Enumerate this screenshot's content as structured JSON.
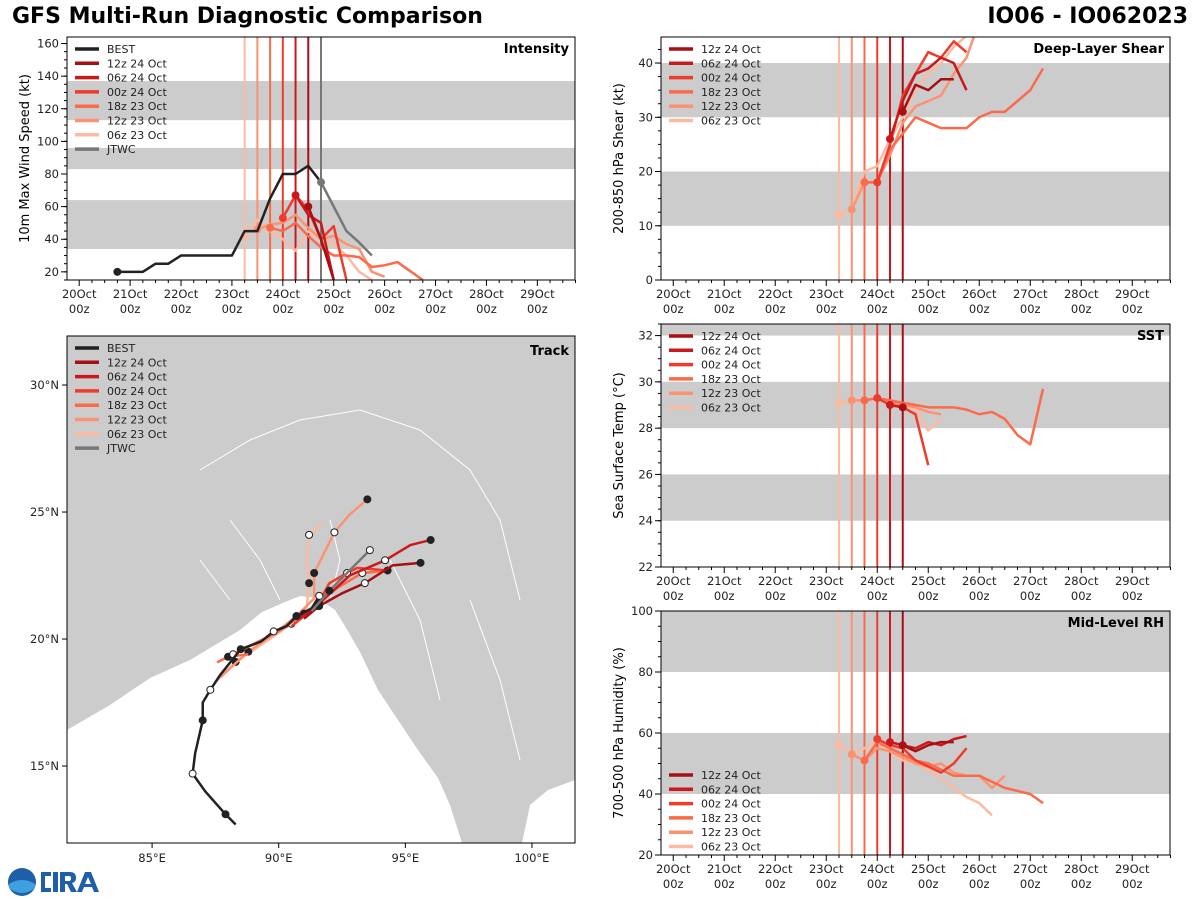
{
  "header": {
    "title": "GFS Multi-Run Diagnostic Comparison",
    "storm": "IO06 - IO062023"
  },
  "logo": {
    "text": "CIRA",
    "agency": "NOAA"
  },
  "colors": {
    "BEST": "#222222",
    "JTWC": "#777777",
    "12z 24 Oct": "#a50f15",
    "06z 24 Oct": "#cb181d",
    "00z 24 Oct": "#ef3b2c",
    "18z 23 Oct": "#fb6a4a",
    "12z 23 Oct": "#fc9272",
    "06z 23 Oct": "#fcbba1",
    "band": "#cccccc",
    "land": "#cccccc"
  },
  "time_axis": {
    "ticks": [
      0,
      1,
      2,
      3,
      4,
      5,
      6,
      7,
      8,
      9
    ],
    "labels": [
      [
        "20Oct",
        "00z"
      ],
      [
        "21Oct",
        "00z"
      ],
      [
        "22Oct",
        "00z"
      ],
      [
        "23Oct",
        "00z"
      ],
      [
        "24Oct",
        "00z"
      ],
      [
        "25Oct",
        "00z"
      ],
      [
        "26Oct",
        "00z"
      ],
      [
        "27Oct",
        "00z"
      ],
      [
        "28Oct",
        "00z"
      ],
      [
        "29Oct",
        "00z"
      ]
    ],
    "range_days_since_20Oct00z": [
      -0.24,
      9.74
    ]
  },
  "init_times": {
    "12z 24 Oct": 4.5,
    "06z 24 Oct": 4.25,
    "00z 24 Oct": 4.0,
    "18z 23 Oct": 3.75,
    "12z 23 Oct": 3.5,
    "06z 23 Oct": 3.25
  },
  "chart_data": [
    {
      "type": "line",
      "title": "Intensity",
      "ylabel": "10m Max Wind Speed (kt)",
      "ylim": [
        15,
        164
      ],
      "yticks": [
        20,
        40,
        60,
        80,
        100,
        120,
        140,
        160
      ],
      "bands": [
        [
          34,
          64
        ],
        [
          83,
          96
        ],
        [
          113,
          137
        ]
      ],
      "legend": [
        "BEST",
        "12z 24 Oct",
        "06z 24 Oct",
        "00z 24 Oct",
        "18z 23 Oct",
        "12z 23 Oct",
        "06z 23 Oct",
        "JTWC"
      ],
      "vlines": [
        "06z 23 Oct",
        "12z 23 Oct",
        "18z 23 Oct",
        "00z 24 Oct",
        "06z 24 Oct",
        "12z 24 Oct",
        "JTWC"
      ],
      "jtwc_vline": 4.75,
      "series": [
        {
          "name": "06z 23 Oct",
          "x": [
            3.25,
            3.5,
            3.75,
            4,
            4.25,
            4.5,
            4.75,
            5,
            5.25,
            5.5,
            5.75
          ],
          "y": [
            42,
            52,
            45,
            40,
            33,
            45,
            40,
            37,
            30,
            20,
            15
          ]
        },
        {
          "name": "12z 23 Oct",
          "x": [
            3.5,
            3.75,
            4,
            4.25,
            4.5,
            4.75,
            5,
            5.25,
            5.5,
            5.75,
            6
          ],
          "y": [
            46,
            49,
            50,
            55,
            47,
            40,
            42,
            37,
            34,
            20,
            17
          ]
        },
        {
          "name": "18z 23 Oct",
          "x": [
            3.75,
            4,
            4.25,
            4.5,
            4.75,
            5,
            5.25,
            5.5,
            5.75,
            6,
            6.25,
            6.75
          ],
          "y": [
            47,
            45,
            50,
            42,
            35,
            30,
            30,
            29,
            23,
            24,
            26,
            15
          ]
        },
        {
          "name": "00z 24 Oct",
          "x": [
            4,
            4.25,
            4.5,
            4.75,
            5,
            5.25
          ],
          "y": [
            53,
            67,
            58,
            40,
            48,
            15
          ]
        },
        {
          "name": "06z 24 Oct",
          "x": [
            4.25,
            4.5,
            4.75,
            5
          ],
          "y": [
            67,
            55,
            50,
            15
          ]
        },
        {
          "name": "12z 24 Oct",
          "x": [
            4.5,
            4.75,
            5
          ],
          "y": [
            60,
            40,
            15
          ]
        },
        {
          "name": "BEST",
          "x": [
            0.75,
            1,
            1.25,
            1.5,
            1.75,
            2,
            2.25,
            2.5,
            2.75,
            3,
            3.25,
            3.5,
            3.75,
            4,
            4.25,
            4.5,
            4.75
          ],
          "y": [
            20,
            20,
            20,
            25,
            25,
            30,
            30,
            30,
            30,
            30,
            45,
            45,
            65,
            80,
            80,
            85,
            75
          ]
        },
        {
          "name": "JTWC",
          "x": [
            4.75,
            5,
            5.25,
            5.5,
            5.75
          ],
          "y": [
            75,
            60,
            45,
            38,
            30
          ]
        }
      ]
    },
    {
      "type": "line",
      "title": "Deep-Layer Shear",
      "ylabel": "200-850 hPa Shear (kt)",
      "ylim": [
        0,
        44.8
      ],
      "yticks": [
        0,
        10,
        20,
        30,
        40
      ],
      "bands": [
        [
          10,
          20
        ],
        [
          30,
          40
        ]
      ],
      "legend": [
        "12z 24 Oct",
        "06z 24 Oct",
        "00z 24 Oct",
        "18z 23 Oct",
        "12z 23 Oct",
        "06z 23 Oct"
      ],
      "vlines": [
        "06z 23 Oct",
        "12z 23 Oct",
        "18z 23 Oct",
        "00z 24 Oct",
        "06z 24 Oct",
        "12z 24 Oct"
      ],
      "series": [
        {
          "name": "06z 23 Oct",
          "x": [
            3.25,
            3.5,
            3.75,
            4,
            4.25,
            4.5,
            4.75,
            5,
            5.25,
            5.5,
            5.75
          ],
          "y": [
            12,
            13,
            20,
            21,
            26,
            30,
            35,
            38,
            40,
            43,
            45
          ]
        },
        {
          "name": "12z 23 Oct",
          "x": [
            3.5,
            3.75,
            4,
            4.25,
            4.5,
            4.75,
            5,
            5.25,
            5.5,
            5.75,
            5.9
          ],
          "y": [
            13,
            18,
            18,
            23,
            29,
            32,
            33,
            34,
            38,
            41,
            45
          ]
        },
        {
          "name": "18z 23 Oct",
          "x": [
            3.75,
            4,
            4.25,
            4.5,
            4.75,
            5,
            5.25,
            5.5,
            5.75,
            6,
            6.25,
            6.5,
            6.75,
            7,
            7.25
          ],
          "y": [
            18,
            18,
            24,
            27,
            30,
            29,
            28,
            28,
            28,
            30,
            31,
            31,
            33,
            35,
            39
          ]
        },
        {
          "name": "00z 24 Oct",
          "x": [
            4,
            4.25,
            4.5,
            4.75,
            5,
            5.25,
            5.5,
            5.75
          ],
          "y": [
            18,
            25,
            34,
            38,
            42,
            41,
            44,
            42
          ]
        },
        {
          "name": "06z 24 Oct",
          "x": [
            4.25,
            4.5,
            4.75,
            5,
            5.25,
            5.5,
            5.75
          ],
          "y": [
            26,
            33,
            38,
            39,
            41,
            40,
            35
          ]
        },
        {
          "name": "12z 24 Oct",
          "x": [
            4.5,
            4.75,
            5,
            5.25,
            5.5
          ],
          "y": [
            31,
            36,
            35,
            37,
            37
          ]
        }
      ]
    },
    {
      "type": "line",
      "title": "SST",
      "ylabel": "Sea Surface Temp (°C)",
      "ylim": [
        22,
        32.5
      ],
      "yticks": [
        22,
        24,
        26,
        28,
        30,
        32
      ],
      "bands": [
        [
          24,
          26
        ],
        [
          28,
          30
        ],
        [
          32,
          33
        ]
      ],
      "legend": [
        "12z 24 Oct",
        "06z 24 Oct",
        "00z 24 Oct",
        "18z 23 Oct",
        "12z 23 Oct",
        "06z 23 Oct"
      ],
      "vlines": [
        "06z 23 Oct",
        "12z 23 Oct",
        "18z 23 Oct",
        "00z 24 Oct",
        "06z 24 Oct",
        "12z 24 Oct"
      ],
      "series": [
        {
          "name": "06z 23 Oct",
          "x": [
            3.25,
            3.5,
            3.75,
            4,
            4.25,
            4.5,
            4.75,
            5,
            5.25
          ],
          "y": [
            29.1,
            29.2,
            29.2,
            29.3,
            29.1,
            29.0,
            28.8,
            27.9,
            28.4
          ]
        },
        {
          "name": "12z 23 Oct",
          "x": [
            3.5,
            3.75,
            4,
            4.25,
            4.5,
            4.75,
            5,
            5.25
          ],
          "y": [
            29.2,
            29.2,
            29.3,
            29.1,
            29.0,
            28.9,
            28.7,
            28.6
          ]
        },
        {
          "name": "18z 23 Oct",
          "x": [
            3.75,
            4,
            4.25,
            4.5,
            4.75,
            5,
            5.25,
            5.5,
            5.75,
            6,
            6.25,
            6.5,
            6.75,
            7,
            7.25
          ],
          "y": [
            29.2,
            29.3,
            29.2,
            29.1,
            29.0,
            28.9,
            28.9,
            28.9,
            28.8,
            28.6,
            28.7,
            28.4,
            27.7,
            27.3,
            29.7
          ]
        },
        {
          "name": "00z 24 Oct",
          "x": [
            4,
            4.25,
            4.5,
            4.75,
            5
          ],
          "y": [
            29.3,
            29.0,
            28.9,
            28.6,
            26.4
          ]
        },
        {
          "name": "06z 24 Oct",
          "x": [
            4.25,
            4.5
          ],
          "y": [
            29.0,
            28.9
          ]
        },
        {
          "name": "12z 24 Oct",
          "x": [
            4.5
          ],
          "y": [
            28.9
          ]
        }
      ]
    },
    {
      "type": "line",
      "title": "Mid-Level RH",
      "ylabel": "700-500 hPa Humidity (%)",
      "ylim": [
        20,
        100
      ],
      "yticks": [
        20,
        40,
        60,
        80,
        100
      ],
      "bands": [
        [
          40,
          60
        ],
        [
          80,
          100
        ]
      ],
      "legend": [
        "12z 24 Oct",
        "06z 24 Oct",
        "00z 24 Oct",
        "18z 23 Oct",
        "12z 23 Oct",
        "06z 23 Oct"
      ],
      "vlines": [
        "06z 23 Oct",
        "12z 23 Oct",
        "18z 23 Oct",
        "00z 24 Oct",
        "06z 24 Oct",
        "12z 24 Oct"
      ],
      "series": [
        {
          "name": "06z 23 Oct",
          "x": [
            3.25,
            3.5,
            3.75,
            4,
            4.25,
            4.5,
            4.75,
            5,
            5.25,
            5.5,
            5.75,
            6,
            6.25
          ],
          "y": [
            56,
            53,
            55,
            57,
            54,
            51,
            50,
            48,
            45,
            42,
            39,
            37,
            33
          ]
        },
        {
          "name": "12z 23 Oct",
          "x": [
            3.5,
            3.75,
            4,
            4.25,
            4.5,
            4.75,
            5,
            5.25,
            5.5,
            5.75,
            6,
            6.25,
            6.5
          ],
          "y": [
            53,
            51,
            55,
            54,
            52,
            50,
            49,
            50,
            47,
            46,
            46,
            42,
            46
          ]
        },
        {
          "name": "18z 23 Oct",
          "x": [
            3.75,
            4,
            4.25,
            4.5,
            4.75,
            5,
            5.25,
            5.5,
            5.75,
            6,
            6.25,
            6.5,
            6.75,
            7,
            7.25
          ],
          "y": [
            51,
            57,
            55,
            53,
            51,
            50,
            48,
            46,
            46,
            46,
            44,
            42,
            41,
            40,
            37
          ]
        },
        {
          "name": "00z 24 Oct",
          "x": [
            4,
            4.25,
            4.5,
            4.75,
            5,
            5.25,
            5.5,
            5.75
          ],
          "y": [
            58,
            56,
            55,
            51,
            49,
            47,
            50,
            55
          ]
        },
        {
          "name": "06z 24 Oct",
          "x": [
            4.25,
            4.5,
            4.75,
            5,
            5.25,
            5.5,
            5.75
          ],
          "y": [
            57,
            56,
            55,
            57,
            56,
            58,
            59
          ]
        },
        {
          "name": "12z 24 Oct",
          "x": [
            4.5,
            4.75,
            5,
            5.25,
            5.5
          ],
          "y": [
            56,
            54,
            56,
            57,
            57
          ]
        }
      ]
    },
    {
      "type": "scatter",
      "title": "Track",
      "xlim": [
        81.64,
        101.7
      ],
      "ylim": [
        11.97,
        31.93
      ],
      "xticks": [
        85,
        90,
        95,
        100
      ],
      "xticklabels": [
        "85°E",
        "90°E",
        "95°E",
        "100°E"
      ],
      "yticks": [
        15,
        20,
        25,
        30
      ],
      "yticklabels": [
        "15°N",
        "20°N",
        "25°N",
        "30°N"
      ],
      "legend": [
        "BEST",
        "12z 24 Oct",
        "06z 24 Oct",
        "00z 24 Oct",
        "18z 23 Oct",
        "12z 23 Oct",
        "06z 23 Oct",
        "JTWC"
      ],
      "series": [
        {
          "name": "06z 23 Oct",
          "lon": [
            87.5,
            88.3,
            89.5,
            90.5,
            91.1,
            91.2,
            91.1,
            91.2,
            91.7
          ],
          "lat": [
            18.3,
            19.1,
            19.9,
            20.6,
            21.2,
            22.2,
            23.0,
            24.1,
            24.5
          ]
        },
        {
          "name": "12z 23 Oct",
          "lon": [
            87.7,
            88.8,
            89.8,
            90.7,
            91.4,
            91.4,
            91.8,
            92.2,
            92.8,
            93.5
          ],
          "lat": [
            18.5,
            19.5,
            20.2,
            20.9,
            21.6,
            22.6,
            23.4,
            24.2,
            24.9,
            25.5
          ]
        },
        {
          "name": "18z 23 Oct",
          "lon": [
            88.8,
            88.0,
            87.6,
            88.2,
            90.0,
            91.0,
            92.3,
            93.3,
            94.4
          ],
          "lat": [
            19.4,
            19.3,
            19.1,
            19.4,
            20.3,
            21.0,
            22.0,
            22.6,
            22.7
          ]
        },
        {
          "name": "00z 24 Oct",
          "lon": [
            90.5,
            91.5,
            92.0,
            92.7,
            93.1,
            94.3
          ],
          "lat": [
            20.5,
            21.3,
            22.2,
            22.6,
            22.8,
            22.7
          ]
        },
        {
          "name": "06z 24 Oct",
          "lon": [
            90.8,
            91.6,
            92.8,
            94.2,
            95.2,
            96.0
          ],
          "lat": [
            20.8,
            21.4,
            22.5,
            23.1,
            23.7,
            23.9
          ]
        },
        {
          "name": "12z 24 Oct",
          "lon": [
            91.0,
            91.6,
            92.5,
            93.4,
            94.5,
            95.6
          ],
          "lat": [
            20.8,
            21.3,
            21.8,
            22.2,
            22.9,
            23.0
          ]
        },
        {
          "name": "BEST",
          "lon": [
            88.3,
            87.9,
            87.1,
            86.6,
            86.7,
            87.0,
            87.0,
            87.3,
            87.7,
            88.5,
            89.3,
            89.8,
            90.3,
            90.7,
            91.3,
            91.6
          ],
          "lat": [
            12.7,
            13.1,
            14.0,
            14.7,
            15.5,
            16.8,
            17.5,
            18.0,
            18.6,
            19.6,
            19.9,
            20.3,
            20.5,
            20.9,
            21.2,
            21.7
          ]
        },
        {
          "name": "JTWC",
          "lon": [
            91.3,
            92.0,
            92.9,
            93.6
          ],
          "lat": [
            21.1,
            21.9,
            22.8,
            23.5
          ]
        }
      ]
    }
  ]
}
